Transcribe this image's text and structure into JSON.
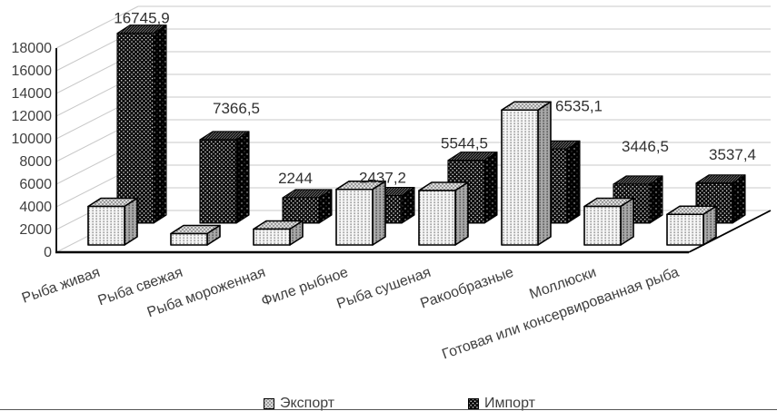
{
  "figure": {
    "background": "#ffffff",
    "title": "",
    "legend": {
      "position": "bottom-center",
      "items": [
        {
          "label": "Экспорт",
          "swatch": "light-dotted-pattern-square"
        },
        {
          "label": "Импорт",
          "swatch": "dark-dotted-pattern-square"
        }
      ]
    }
  },
  "chart_data": {
    "type": "bar",
    "style": "3d-column",
    "title": "",
    "xlabel": "",
    "ylabel": "",
    "categories": [
      "Рыба живая",
      "Рыба свежая",
      "Рыба мороженная",
      "Филе рыбное",
      "Рыба сушеная",
      "Ракообразные",
      "Моллюски",
      "Готовая или консервированная рыба"
    ],
    "series": [
      {
        "name": "Экспорт",
        "values": [
          3400,
          1000,
          1400,
          4900,
          4800,
          11900,
          3400,
          2700
        ],
        "values_estimated": true,
        "data_labels_shown": false
      },
      {
        "name": "Импорт",
        "values": [
          16745.9,
          7366.5,
          2244,
          2437.2,
          5544.5,
          6535.1,
          3446.5,
          3537.4
        ],
        "values_estimated": false,
        "data_labels_shown": true,
        "data_labels": [
          "16745,9",
          "7366,5",
          "2244",
          "2437,2",
          "5544,5",
          "6535,1",
          "3446,5",
          "3537,4"
        ]
      }
    ],
    "ylim": [
      0,
      18000
    ],
    "ytick_step": 2000,
    "yticks": [
      "0",
      "2000",
      "4000",
      "6000",
      "8000",
      "10000",
      "12000",
      "14000",
      "16000",
      "18000"
    ],
    "grid": true,
    "legend_position": "bottom",
    "colors": {
      "export_fill": "#f5f5f5",
      "export_side": "#a8a8a8",
      "import_fill": "#0d0d0d",
      "text": "#3f3f3f",
      "data_label_text": "#303030",
      "gridline": "#c9c9c9",
      "axis": "#000000"
    }
  }
}
